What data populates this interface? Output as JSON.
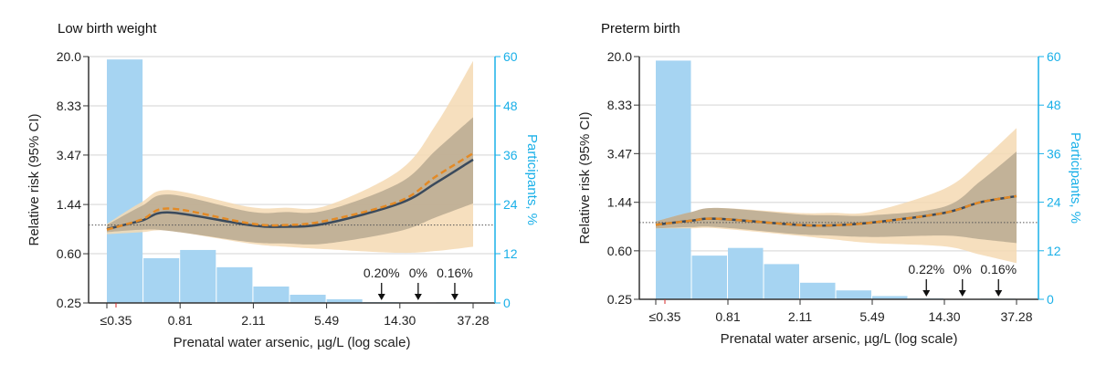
{
  "chart_data": [
    {
      "type": "line",
      "title": "Low birth weight",
      "xlabel": "Prenatal water arsenic, µg/L (log scale)",
      "ylabel": "Relative risk (95% CI)",
      "y2label": "Participants, %",
      "x_scale": "log",
      "y_scale": "log",
      "x_ticks": [
        "≤0.35",
        "0.81",
        "2.11",
        "5.49",
        "14.30",
        "37.28"
      ],
      "x_tick_values": [
        0.35,
        0.81,
        2.11,
        5.49,
        14.3,
        37.28
      ],
      "y_ticks": [
        "0.25",
        "0.60",
        "1.44",
        "3.47",
        "8.33",
        "20.0"
      ],
      "y_tick_values": [
        0.25,
        0.6,
        1.44,
        3.47,
        8.33,
        20.0
      ],
      "ylim": [
        0.25,
        20.0
      ],
      "y2_ticks": [
        "0",
        "12",
        "24",
        "36",
        "48",
        "60"
      ],
      "y2lim": [
        0,
        60
      ],
      "reference_line": 1.0,
      "grid": true,
      "histogram": {
        "values": [
          59.3,
          10.9,
          12.9,
          8.7,
          4.0,
          2.0,
          0.9,
          0.2,
          0,
          0.16
        ]
      },
      "annotations": [
        {
          "text": "0.20%",
          "bin": 7
        },
        {
          "text": "0%",
          "bin": 8
        },
        {
          "text": "0.16%",
          "bin": 9
        }
      ],
      "x": [
        0.35,
        0.52,
        0.72,
        2.0,
        3.2,
        5.49,
        14.3,
        23,
        37.28
      ],
      "series": [
        {
          "style": "solid",
          "values": [
            0.93,
            1.08,
            1.25,
            1.0,
            0.97,
            1.03,
            1.47,
            2.12,
            3.2
          ]
        },
        {
          "style": "dashed",
          "values": [
            0.92,
            1.1,
            1.34,
            1.03,
            1.0,
            1.08,
            1.53,
            2.38,
            3.58
          ]
        }
      ],
      "bands": [
        {
          "style": "outer",
          "lower": [
            0.85,
            0.88,
            0.9,
            0.72,
            0.68,
            0.65,
            0.61,
            0.63,
            0.68
          ],
          "upper": [
            1.02,
            1.5,
            1.86,
            1.38,
            1.36,
            1.41,
            2.65,
            6.0,
            18.5
          ]
        },
        {
          "style": "inner",
          "lower": [
            0.88,
            0.92,
            0.9,
            0.74,
            0.72,
            0.72,
            0.9,
            1.15,
            1.47
          ],
          "upper": [
            1.0,
            1.4,
            1.72,
            1.27,
            1.26,
            1.3,
            2.12,
            3.8,
            6.8
          ]
        }
      ]
    },
    {
      "type": "line",
      "title": "Preterm birth",
      "xlabel": "Prenatal water arsenic, µg/L (log scale)",
      "ylabel": "Relative risk (95% CI)",
      "y2label": "Participants, %",
      "x_scale": "log",
      "y_scale": "log",
      "x_ticks": [
        "≤0.35",
        "0.81",
        "2.11",
        "5.49",
        "14.30",
        "37.28"
      ],
      "x_tick_values": [
        0.35,
        0.81,
        2.11,
        5.49,
        14.3,
        37.28
      ],
      "y_ticks": [
        "0.25",
        "0.60",
        "1.44",
        "3.47",
        "8.33",
        "20.0"
      ],
      "y_tick_values": [
        0.25,
        0.6,
        1.44,
        3.47,
        8.33,
        20.0
      ],
      "ylim": [
        0.25,
        20.0
      ],
      "y2_ticks": [
        "0",
        "12",
        "24",
        "36",
        "48",
        "60"
      ],
      "y2lim": [
        0,
        60
      ],
      "reference_line": 1.0,
      "grid": true,
      "histogram": {
        "values": [
          59.0,
          10.8,
          12.7,
          8.7,
          4.1,
          2.2,
          0.8,
          0.22,
          0,
          0.16
        ]
      },
      "annotations": [
        {
          "text": "0.22%",
          "bin": 7
        },
        {
          "text": "0%",
          "bin": 8
        },
        {
          "text": "0.16%",
          "bin": 9
        }
      ],
      "x": [
        0.35,
        0.52,
        0.72,
        2.0,
        3.2,
        5.49,
        14.3,
        23,
        37.28
      ],
      "series": [
        {
          "style": "solid",
          "values": [
            0.96,
            1.03,
            1.07,
            0.96,
            0.95,
            1.0,
            1.19,
            1.44,
            1.61
          ]
        },
        {
          "style": "dashed",
          "values": [
            0.96,
            1.03,
            1.07,
            0.96,
            0.95,
            1.0,
            1.19,
            1.44,
            1.61
          ]
        }
      ],
      "bands": [
        {
          "style": "outer",
          "lower": [
            0.9,
            0.9,
            0.9,
            0.79,
            0.74,
            0.69,
            0.65,
            0.56,
            0.48
          ],
          "upper": [
            1.02,
            1.2,
            1.3,
            1.19,
            1.19,
            1.22,
            1.84,
            3.0,
            5.5
          ]
        },
        {
          "style": "inner",
          "lower": [
            0.9,
            0.92,
            0.92,
            0.81,
            0.79,
            0.77,
            0.79,
            0.74,
            0.69
          ],
          "upper": [
            1.02,
            1.2,
            1.3,
            1.16,
            1.14,
            1.14,
            1.33,
            2.1,
            3.6
          ]
        }
      ]
    }
  ],
  "colors": {
    "bars": "#a6d4f2",
    "outer_band": "#f5d9b3",
    "inner_band": "#b5a68f",
    "solid_line": "#3a4a5c",
    "dashed_line": "#e38a26",
    "right_axis": "#1ab0e8",
    "highlight_tick": "#d42a2a",
    "grid": "#e2e2e2"
  }
}
